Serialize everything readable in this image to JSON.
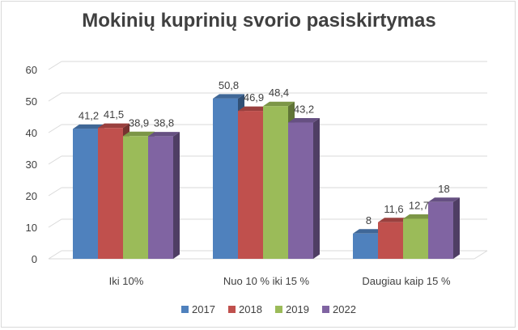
{
  "chart_data": {
    "type": "bar",
    "title": "Mokinių kuprinių svorio pasiskirtymas",
    "categories": [
      "Iki 10%",
      "Nuo 10 % iki 15 %",
      "Daugiau kaip 15 %"
    ],
    "series": [
      {
        "name": "2017",
        "values": [
          41.2,
          50.8,
          8
        ],
        "labels": [
          "41,2",
          "50,8",
          "8"
        ],
        "color": "#4f81bd"
      },
      {
        "name": "2018",
        "values": [
          41.5,
          46.9,
          11.6
        ],
        "labels": [
          "41,5",
          "46,9",
          "11,6"
        ],
        "color": "#c0504d"
      },
      {
        "name": "2019",
        "values": [
          38.9,
          48.4,
          12.7
        ],
        "labels": [
          "38,9",
          "48,4",
          "12,7"
        ],
        "color": "#9bbb59"
      },
      {
        "name": "2022",
        "values": [
          38.8,
          43.2,
          18
        ],
        "labels": [
          "38,8",
          "43,2",
          "18"
        ],
        "color": "#8064a2"
      }
    ],
    "yticks": [
      0,
      10,
      20,
      30,
      40,
      50,
      60
    ],
    "ylim": [
      0,
      60
    ],
    "legend": "bottom",
    "grid": true
  }
}
